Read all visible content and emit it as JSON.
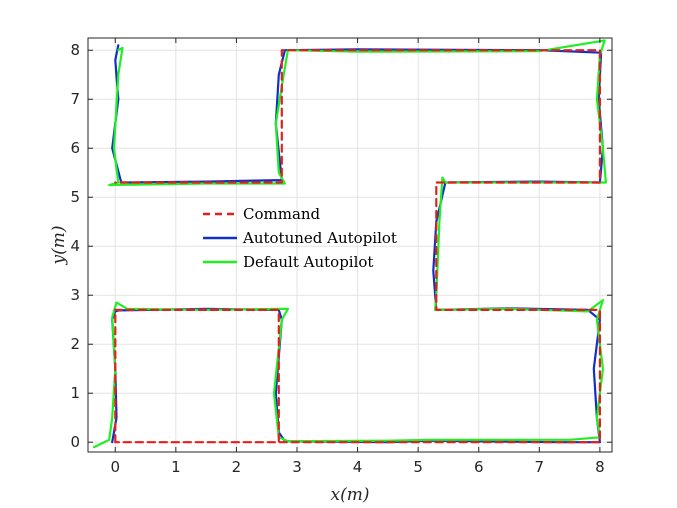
{
  "chart_data": {
    "type": "line",
    "xlabel": "x(m)",
    "ylabel": "y(m)",
    "xlim": [
      -0.45,
      8.2
    ],
    "ylim": [
      -0.2,
      8.25
    ],
    "xticks": [
      0,
      1,
      2,
      3,
      4,
      5,
      6,
      7,
      8
    ],
    "yticks": [
      0,
      1,
      2,
      3,
      4,
      5,
      6,
      7,
      8
    ],
    "grid": true,
    "legend_position": "center",
    "colors": {
      "command": "#e0211c",
      "autotuned": "#1030c8",
      "default": "#22ee22"
    },
    "series": [
      {
        "name": "Command",
        "style": "dashed",
        "x": [
          0,
          0,
          2.7,
          2.7,
          0,
          0,
          2.75,
          2.75,
          8,
          8,
          5.3,
          5.3,
          8,
          8,
          2.75,
          2.75,
          0
        ],
        "y": [
          0,
          2.7,
          2.7,
          0,
          0,
          0,
          0,
          0,
          0,
          2.7,
          2.7,
          5.3,
          5.3,
          8,
          8,
          5.3,
          5.3
        ]
      },
      {
        "name": "Autotuned Autopilot",
        "style": "solid",
        "x": [
          -0.05,
          0.02,
          0.0,
          -0.05,
          0.0,
          0.05,
          1.5,
          2.7,
          2.75,
          2.65,
          2.7,
          2.8,
          4.5,
          5.2,
          7.3,
          8.0,
          7.95,
          7.9,
          8.0,
          7.8,
          6.5,
          5.3,
          5.25,
          5.3,
          5.45,
          7.0,
          8.0,
          8.05,
          7.98,
          8.02,
          7.0,
          4.0,
          2.8,
          2.7,
          2.65,
          2.75,
          1.5,
          0.1,
          -0.05,
          0.05,
          0.0,
          0.05
        ],
        "y": [
          0.0,
          0.5,
          1.5,
          2.5,
          2.67,
          2.69,
          2.72,
          2.7,
          2.5,
          1.0,
          0.2,
          0.02,
          0.0,
          0.03,
          0.0,
          0.0,
          0.5,
          1.5,
          2.5,
          2.7,
          2.73,
          2.7,
          3.5,
          4.5,
          5.3,
          5.32,
          5.3,
          6.0,
          7.0,
          7.95,
          8.0,
          8.02,
          8.0,
          7.5,
          6.5,
          5.35,
          5.32,
          5.3,
          6.0,
          7.0,
          7.8,
          8.1
        ]
      },
      {
        "name": "Default Autopilot",
        "style": "solid",
        "x": [
          -0.35,
          -0.1,
          -0.05,
          0.0,
          -0.05,
          0.02,
          0.2,
          1.5,
          2.7,
          2.85,
          2.75,
          2.62,
          2.7,
          2.85,
          4.5,
          5.2,
          7.5,
          8.0,
          7.95,
          8.05,
          7.95,
          8.05,
          7.8,
          6.5,
          5.28,
          5.3,
          5.35,
          5.4,
          5.45,
          7.0,
          8.1,
          8.05,
          7.95,
          8.0,
          8.08,
          7.0,
          4.0,
          2.85,
          2.78,
          2.65,
          2.7,
          2.8,
          1.5,
          -0.1,
          0.05,
          -0.02,
          0.05,
          0.12,
          0.05
        ],
        "y": [
          -0.1,
          0.05,
          0.5,
          1.5,
          2.55,
          2.85,
          2.72,
          2.7,
          2.72,
          2.72,
          2.5,
          1.0,
          0.1,
          0.02,
          0.03,
          0.05,
          0.05,
          0.1,
          0.5,
          1.5,
          2.5,
          2.9,
          2.67,
          2.72,
          2.7,
          3.0,
          4.5,
          5.4,
          5.3,
          5.3,
          5.3,
          6.0,
          7.0,
          7.9,
          8.2,
          7.98,
          7.97,
          8.0,
          7.5,
          6.5,
          5.5,
          5.28,
          5.28,
          5.25,
          5.3,
          6.0,
          7.5,
          8.05,
          8.0
        ]
      }
    ]
  }
}
